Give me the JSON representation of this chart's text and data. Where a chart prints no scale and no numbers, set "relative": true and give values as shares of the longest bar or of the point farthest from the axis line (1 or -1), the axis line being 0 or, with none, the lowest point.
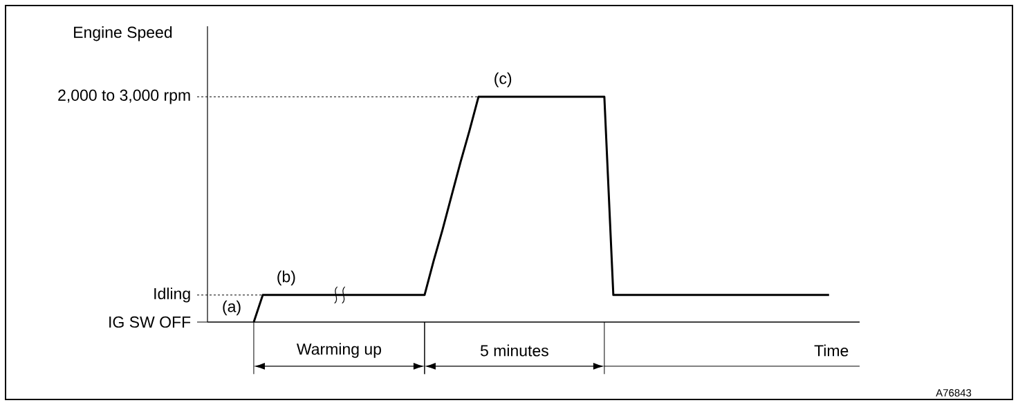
{
  "chart_data": {
    "type": "line",
    "xlabel": "Time",
    "categories": [
      null,
      null,
      null,
      null,
      null,
      null,
      null,
      null,
      null,
      null,
      null,
      null,
      null,
      null,
      null,
      null,
      null,
      null,
      null,
      null,
      null,
      null,
      null,
      null,
      null,
      null,
      null,
      null,
      null,
      null,
      null,
      null,
      null,
      null,
      null,
      null,
      null,
      null,
      null,
      null,
      null,
      null,
      null,
      null,
      null,
      null,
      null,
      null,
      null,
      null,
      null,
      null,
      null,
      null,
      null,
      null,
      null,
      null,
      null,
      null,
      null,
      null,
      null,
      null,
      null
    ],
    "relative": true,
    "series": [
      {
        "color": "#000000",
        "values": [
          0,
          0.12,
          0.12,
          0.12,
          0.12,
          0.12,
          0.12,
          0.12,
          0.12,
          0.12,
          0.12,
          0.12,
          0.12,
          0.12,
          0.12,
          0.12,
          0.12,
          0.12,
          0.12,
          0.12,
          0.27,
          0.41,
          0.56,
          0.71,
          0.85,
          1,
          1,
          1,
          1,
          1,
          1,
          1,
          1,
          1,
          1,
          1,
          1,
          1,
          1,
          1,
          0.12,
          0.12,
          0.12,
          0.12,
          0.12,
          0.12,
          0.12,
          0.12,
          0.12,
          0.12,
          0.12,
          0.12,
          0.12,
          0.12,
          0.12,
          0.12,
          0.12,
          0.12,
          0.12,
          0.12,
          0.12,
          0.12,
          0.12,
          0.12,
          0.12
        ]
      }
    ],
    "ref_lines": [
      {
        "axis": "y",
        "value": 1,
        "label": "2,000 to 3,000 rpm",
        "line_style": "dashed"
      },
      {
        "axis": "y",
        "value": 0.12,
        "label": "Idling",
        "line_style": "dashed"
      },
      {
        "axis": "y",
        "value": 0,
        "label": "IG SW OFF",
        "line_style": "solid"
      }
    ],
    "annotations": [
      "(a)",
      "(b)",
      "(c)",
      "Warming up",
      "5 minutes",
      "A76843",
      "Engine Speed"
    ]
  }
}
